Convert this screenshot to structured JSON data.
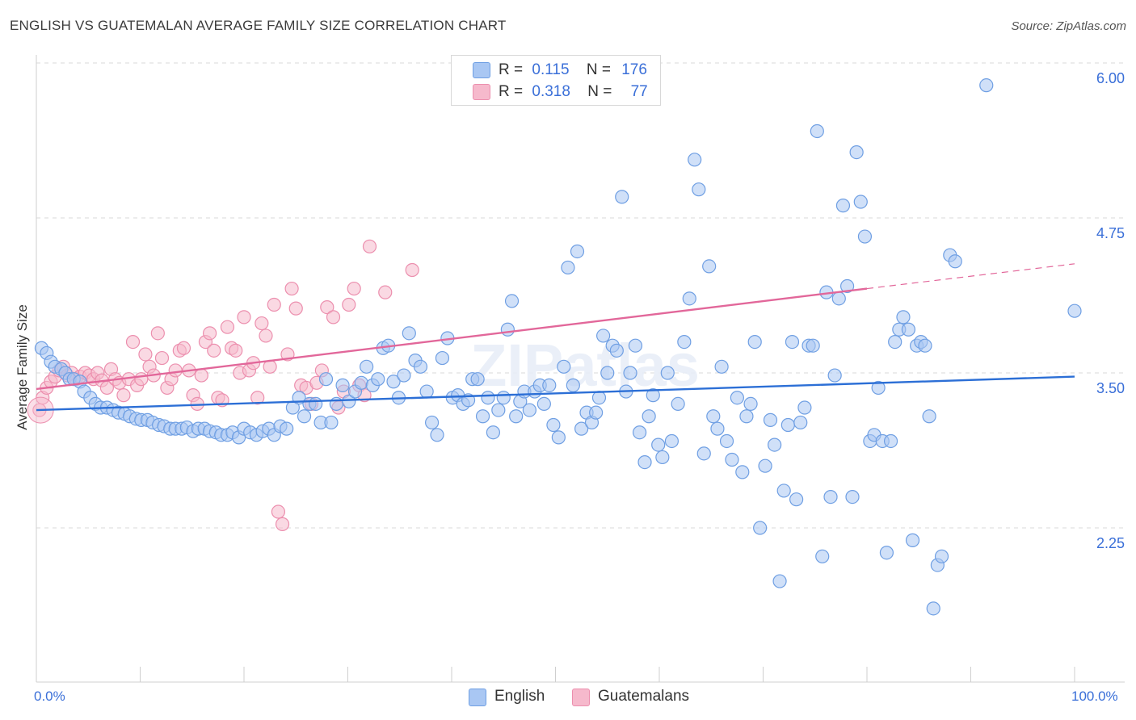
{
  "title": "ENGLISH VS GUATEMALAN AVERAGE FAMILY SIZE CORRELATION CHART",
  "source": "Source: ZipAtlas.com",
  "watermark": "ZIPatlas",
  "legend": {
    "rows": [
      {
        "r_label": "R =",
        "r_value": "0.115",
        "n_label": "N =",
        "n_value": "176",
        "color": "#a9c7f3"
      },
      {
        "r_label": "R =",
        "r_value": "0.318",
        "n_label": "N =",
        "n_value": "77",
        "color": "#f6b9cc"
      }
    ]
  },
  "bottom_legend": [
    "English",
    "Guatemalans"
  ],
  "y_axis_label": "Average Family Size",
  "x_tick_labels": {
    "left": "0.0%",
    "right": "100.0%"
  },
  "colors": {
    "english_fill": "#a9c7f3",
    "english_stroke": "#6f9fe3",
    "english_line": "#2c6fd6",
    "guatemalan_fill": "#f6b9cc",
    "guatemalan_stroke": "#ec8fae",
    "guatemalan_line": "#e2679a",
    "tick_label": "#3a6fd8",
    "grid": "#d9d9d9"
  },
  "chart_data": {
    "type": "scatter",
    "xlabel": "",
    "ylabel": "Average Family Size",
    "xlim": [
      0,
      100
    ],
    "ylim": [
      1.0,
      6.15
    ],
    "yticks": [
      2.25,
      3.5,
      4.75,
      6.0
    ],
    "ytick_labels": [
      "2.25",
      "3.50",
      "4.75",
      "6.00"
    ],
    "grid": "horizontal dashed",
    "legend_position": "top-center",
    "series": [
      {
        "name": "English",
        "r": 0.115,
        "n": 176,
        "trend": {
          "x": [
            0,
            100
          ],
          "y": [
            3.2,
            3.47
          ]
        },
        "points": [
          [
            0.5,
            3.7
          ],
          [
            1.0,
            3.66
          ],
          [
            1.4,
            3.59
          ],
          [
            1.8,
            3.55
          ],
          [
            2.4,
            3.53
          ],
          [
            2.8,
            3.5
          ],
          [
            3.2,
            3.45
          ],
          [
            3.6,
            3.45
          ],
          [
            4.2,
            3.43
          ],
          [
            4.6,
            3.35
          ],
          [
            5.2,
            3.3
          ],
          [
            5.7,
            3.25
          ],
          [
            6.2,
            3.22
          ],
          [
            6.8,
            3.22
          ],
          [
            7.4,
            3.2
          ],
          [
            7.9,
            3.18
          ],
          [
            8.5,
            3.17
          ],
          [
            9.0,
            3.15
          ],
          [
            9.6,
            3.13
          ],
          [
            10.1,
            3.12
          ],
          [
            10.7,
            3.12
          ],
          [
            11.2,
            3.1
          ],
          [
            11.8,
            3.08
          ],
          [
            12.3,
            3.07
          ],
          [
            12.9,
            3.05
          ],
          [
            13.4,
            3.05
          ],
          [
            14.0,
            3.05
          ],
          [
            14.5,
            3.06
          ],
          [
            15.1,
            3.03
          ],
          [
            15.6,
            3.05
          ],
          [
            16.2,
            3.05
          ],
          [
            16.7,
            3.03
          ],
          [
            17.3,
            3.02
          ],
          [
            17.8,
            3.0
          ],
          [
            18.4,
            3.0
          ],
          [
            18.9,
            3.02
          ],
          [
            19.5,
            2.98
          ],
          [
            20.0,
            3.05
          ],
          [
            20.6,
            3.02
          ],
          [
            21.2,
            3.0
          ],
          [
            21.8,
            3.03
          ],
          [
            22.4,
            3.05
          ],
          [
            22.9,
            3.0
          ],
          [
            23.5,
            3.07
          ],
          [
            24.1,
            3.05
          ],
          [
            24.7,
            3.22
          ],
          [
            25.3,
            3.3
          ],
          [
            25.8,
            3.15
          ],
          [
            26.3,
            3.25
          ],
          [
            26.9,
            3.25
          ],
          [
            27.4,
            3.1
          ],
          [
            27.9,
            3.45
          ],
          [
            28.4,
            3.1
          ],
          [
            28.9,
            3.25
          ],
          [
            29.5,
            3.4
          ],
          [
            30.1,
            3.27
          ],
          [
            30.7,
            3.35
          ],
          [
            31.3,
            3.42
          ],
          [
            31.8,
            3.55
          ],
          [
            32.4,
            3.4
          ],
          [
            32.9,
            3.45
          ],
          [
            33.4,
            3.7
          ],
          [
            33.9,
            3.72
          ],
          [
            34.4,
            3.43
          ],
          [
            34.9,
            3.3
          ],
          [
            35.4,
            3.48
          ],
          [
            35.9,
            3.82
          ],
          [
            36.5,
            3.6
          ],
          [
            37.0,
            3.55
          ],
          [
            37.6,
            3.35
          ],
          [
            38.1,
            3.1
          ],
          [
            38.6,
            3.0
          ],
          [
            39.1,
            3.62
          ],
          [
            39.6,
            3.78
          ],
          [
            40.1,
            3.3
          ],
          [
            40.6,
            3.32
          ],
          [
            41.1,
            3.25
          ],
          [
            41.6,
            3.28
          ],
          [
            42.0,
            3.45
          ],
          [
            42.5,
            3.45
          ],
          [
            43.0,
            3.15
          ],
          [
            43.5,
            3.3
          ],
          [
            44.0,
            3.02
          ],
          [
            44.5,
            3.2
          ],
          [
            45.0,
            3.3
          ],
          [
            45.4,
            3.85
          ],
          [
            45.8,
            4.08
          ],
          [
            46.2,
            3.15
          ],
          [
            46.6,
            3.27
          ],
          [
            47.0,
            3.35
          ],
          [
            47.5,
            3.2
          ],
          [
            48.0,
            3.35
          ],
          [
            48.5,
            3.4
          ],
          [
            48.9,
            3.25
          ],
          [
            49.4,
            3.4
          ],
          [
            49.8,
            3.08
          ],
          [
            50.3,
            2.98
          ],
          [
            50.8,
            3.55
          ],
          [
            51.2,
            4.35
          ],
          [
            51.7,
            3.4
          ],
          [
            52.1,
            4.48
          ],
          [
            52.5,
            3.05
          ],
          [
            53.0,
            3.18
          ],
          [
            53.5,
            3.1
          ],
          [
            53.9,
            3.18
          ],
          [
            54.2,
            3.3
          ],
          [
            54.6,
            3.8
          ],
          [
            55.0,
            3.5
          ],
          [
            55.5,
            3.72
          ],
          [
            55.9,
            3.68
          ],
          [
            56.4,
            4.92
          ],
          [
            56.8,
            3.35
          ],
          [
            57.2,
            3.5
          ],
          [
            57.7,
            3.72
          ],
          [
            58.1,
            3.02
          ],
          [
            58.6,
            2.78
          ],
          [
            59.0,
            3.15
          ],
          [
            59.4,
            3.32
          ],
          [
            59.9,
            2.92
          ],
          [
            60.3,
            2.82
          ],
          [
            60.8,
            3.5
          ],
          [
            61.2,
            2.95
          ],
          [
            61.8,
            3.25
          ],
          [
            62.4,
            3.75
          ],
          [
            62.9,
            4.1
          ],
          [
            63.4,
            5.22
          ],
          [
            63.8,
            4.98
          ],
          [
            64.3,
            2.85
          ],
          [
            64.8,
            4.36
          ],
          [
            65.2,
            3.15
          ],
          [
            65.6,
            3.05
          ],
          [
            66.0,
            3.55
          ],
          [
            66.5,
            2.95
          ],
          [
            67.0,
            2.8
          ],
          [
            67.5,
            3.3
          ],
          [
            68.0,
            2.7
          ],
          [
            68.4,
            3.15
          ],
          [
            68.8,
            3.25
          ],
          [
            69.2,
            3.75
          ],
          [
            69.7,
            2.25
          ],
          [
            70.2,
            2.75
          ],
          [
            70.7,
            3.12
          ],
          [
            71.1,
            2.92
          ],
          [
            71.6,
            1.82
          ],
          [
            72.0,
            2.55
          ],
          [
            72.4,
            3.08
          ],
          [
            72.8,
            3.75
          ],
          [
            73.2,
            2.48
          ],
          [
            73.6,
            3.1
          ],
          [
            74.0,
            3.22
          ],
          [
            74.4,
            3.72
          ],
          [
            74.8,
            3.72
          ],
          [
            75.2,
            5.45
          ],
          [
            75.7,
            2.02
          ],
          [
            76.1,
            4.15
          ],
          [
            76.5,
            2.5
          ],
          [
            76.9,
            3.48
          ],
          [
            77.3,
            4.1
          ],
          [
            77.7,
            4.85
          ],
          [
            78.1,
            4.2
          ],
          [
            78.6,
            2.5
          ],
          [
            79.0,
            5.28
          ],
          [
            79.4,
            4.88
          ],
          [
            79.8,
            4.6
          ],
          [
            80.3,
            2.95
          ],
          [
            80.7,
            3.0
          ],
          [
            81.1,
            3.38
          ],
          [
            81.5,
            2.95
          ],
          [
            81.9,
            2.05
          ],
          [
            82.3,
            2.95
          ],
          [
            82.7,
            3.75
          ],
          [
            83.1,
            3.85
          ],
          [
            83.5,
            3.95
          ],
          [
            84.0,
            3.85
          ],
          [
            84.4,
            2.15
          ],
          [
            84.8,
            3.72
          ],
          [
            85.2,
            3.75
          ],
          [
            85.6,
            3.72
          ],
          [
            86.0,
            3.15
          ],
          [
            86.4,
            1.6
          ],
          [
            86.8,
            1.95
          ],
          [
            87.2,
            2.02
          ],
          [
            88.0,
            4.45
          ],
          [
            88.5,
            4.4
          ],
          [
            91.5,
            5.82
          ],
          [
            100.0,
            4.0
          ]
        ]
      },
      {
        "name": "Guatemalans",
        "r": 0.318,
        "n": 77,
        "trend": {
          "x": [
            0,
            80
          ],
          "y": [
            3.37,
            4.18
          ]
        },
        "trend_dashed": {
          "x": [
            80,
            100
          ],
          "y": [
            4.18,
            4.38
          ]
        },
        "points": [
          [
            0.3,
            3.2
          ],
          [
            0.6,
            3.3
          ],
          [
            1.0,
            3.38
          ],
          [
            1.4,
            3.43
          ],
          [
            1.8,
            3.47
          ],
          [
            2.2,
            3.52
          ],
          [
            2.6,
            3.55
          ],
          [
            3.0,
            3.48
          ],
          [
            3.4,
            3.5
          ],
          [
            3.8,
            3.45
          ],
          [
            4.2,
            3.47
          ],
          [
            4.7,
            3.5
          ],
          [
            5.1,
            3.48
          ],
          [
            5.5,
            3.45
          ],
          [
            5.9,
            3.5
          ],
          [
            6.3,
            3.44
          ],
          [
            6.8,
            3.38
          ],
          [
            7.2,
            3.53
          ],
          [
            7.6,
            3.45
          ],
          [
            8.0,
            3.42
          ],
          [
            8.4,
            3.32
          ],
          [
            8.9,
            3.45
          ],
          [
            9.3,
            3.75
          ],
          [
            9.7,
            3.4
          ],
          [
            10.1,
            3.45
          ],
          [
            10.5,
            3.65
          ],
          [
            10.9,
            3.55
          ],
          [
            11.3,
            3.48
          ],
          [
            11.7,
            3.82
          ],
          [
            12.1,
            3.62
          ],
          [
            12.6,
            3.38
          ],
          [
            13.0,
            3.45
          ],
          [
            13.4,
            3.52
          ],
          [
            13.8,
            3.68
          ],
          [
            14.2,
            3.7
          ],
          [
            14.7,
            3.52
          ],
          [
            15.1,
            3.32
          ],
          [
            15.5,
            3.25
          ],
          [
            15.9,
            3.48
          ],
          [
            16.3,
            3.75
          ],
          [
            16.7,
            3.82
          ],
          [
            17.1,
            3.68
          ],
          [
            17.5,
            3.3
          ],
          [
            17.9,
            3.28
          ],
          [
            18.4,
            3.87
          ],
          [
            18.8,
            3.7
          ],
          [
            19.2,
            3.68
          ],
          [
            19.6,
            3.5
          ],
          [
            20.0,
            3.95
          ],
          [
            20.5,
            3.52
          ],
          [
            20.9,
            3.58
          ],
          [
            21.3,
            3.3
          ],
          [
            21.7,
            3.9
          ],
          [
            22.1,
            3.8
          ],
          [
            22.5,
            3.55
          ],
          [
            22.9,
            4.05
          ],
          [
            23.3,
            2.38
          ],
          [
            23.7,
            2.28
          ],
          [
            24.2,
            3.65
          ],
          [
            24.6,
            4.18
          ],
          [
            25.0,
            4.02
          ],
          [
            25.5,
            3.4
          ],
          [
            26.0,
            3.38
          ],
          [
            26.5,
            3.25
          ],
          [
            27.0,
            3.42
          ],
          [
            27.5,
            3.52
          ],
          [
            28.0,
            4.03
          ],
          [
            28.6,
            3.95
          ],
          [
            29.1,
            3.22
          ],
          [
            29.6,
            3.35
          ],
          [
            30.1,
            4.05
          ],
          [
            30.6,
            4.18
          ],
          [
            31.1,
            3.4
          ],
          [
            31.6,
            3.32
          ],
          [
            32.1,
            4.52
          ],
          [
            33.6,
            4.15
          ],
          [
            36.2,
            4.33
          ]
        ]
      }
    ]
  }
}
